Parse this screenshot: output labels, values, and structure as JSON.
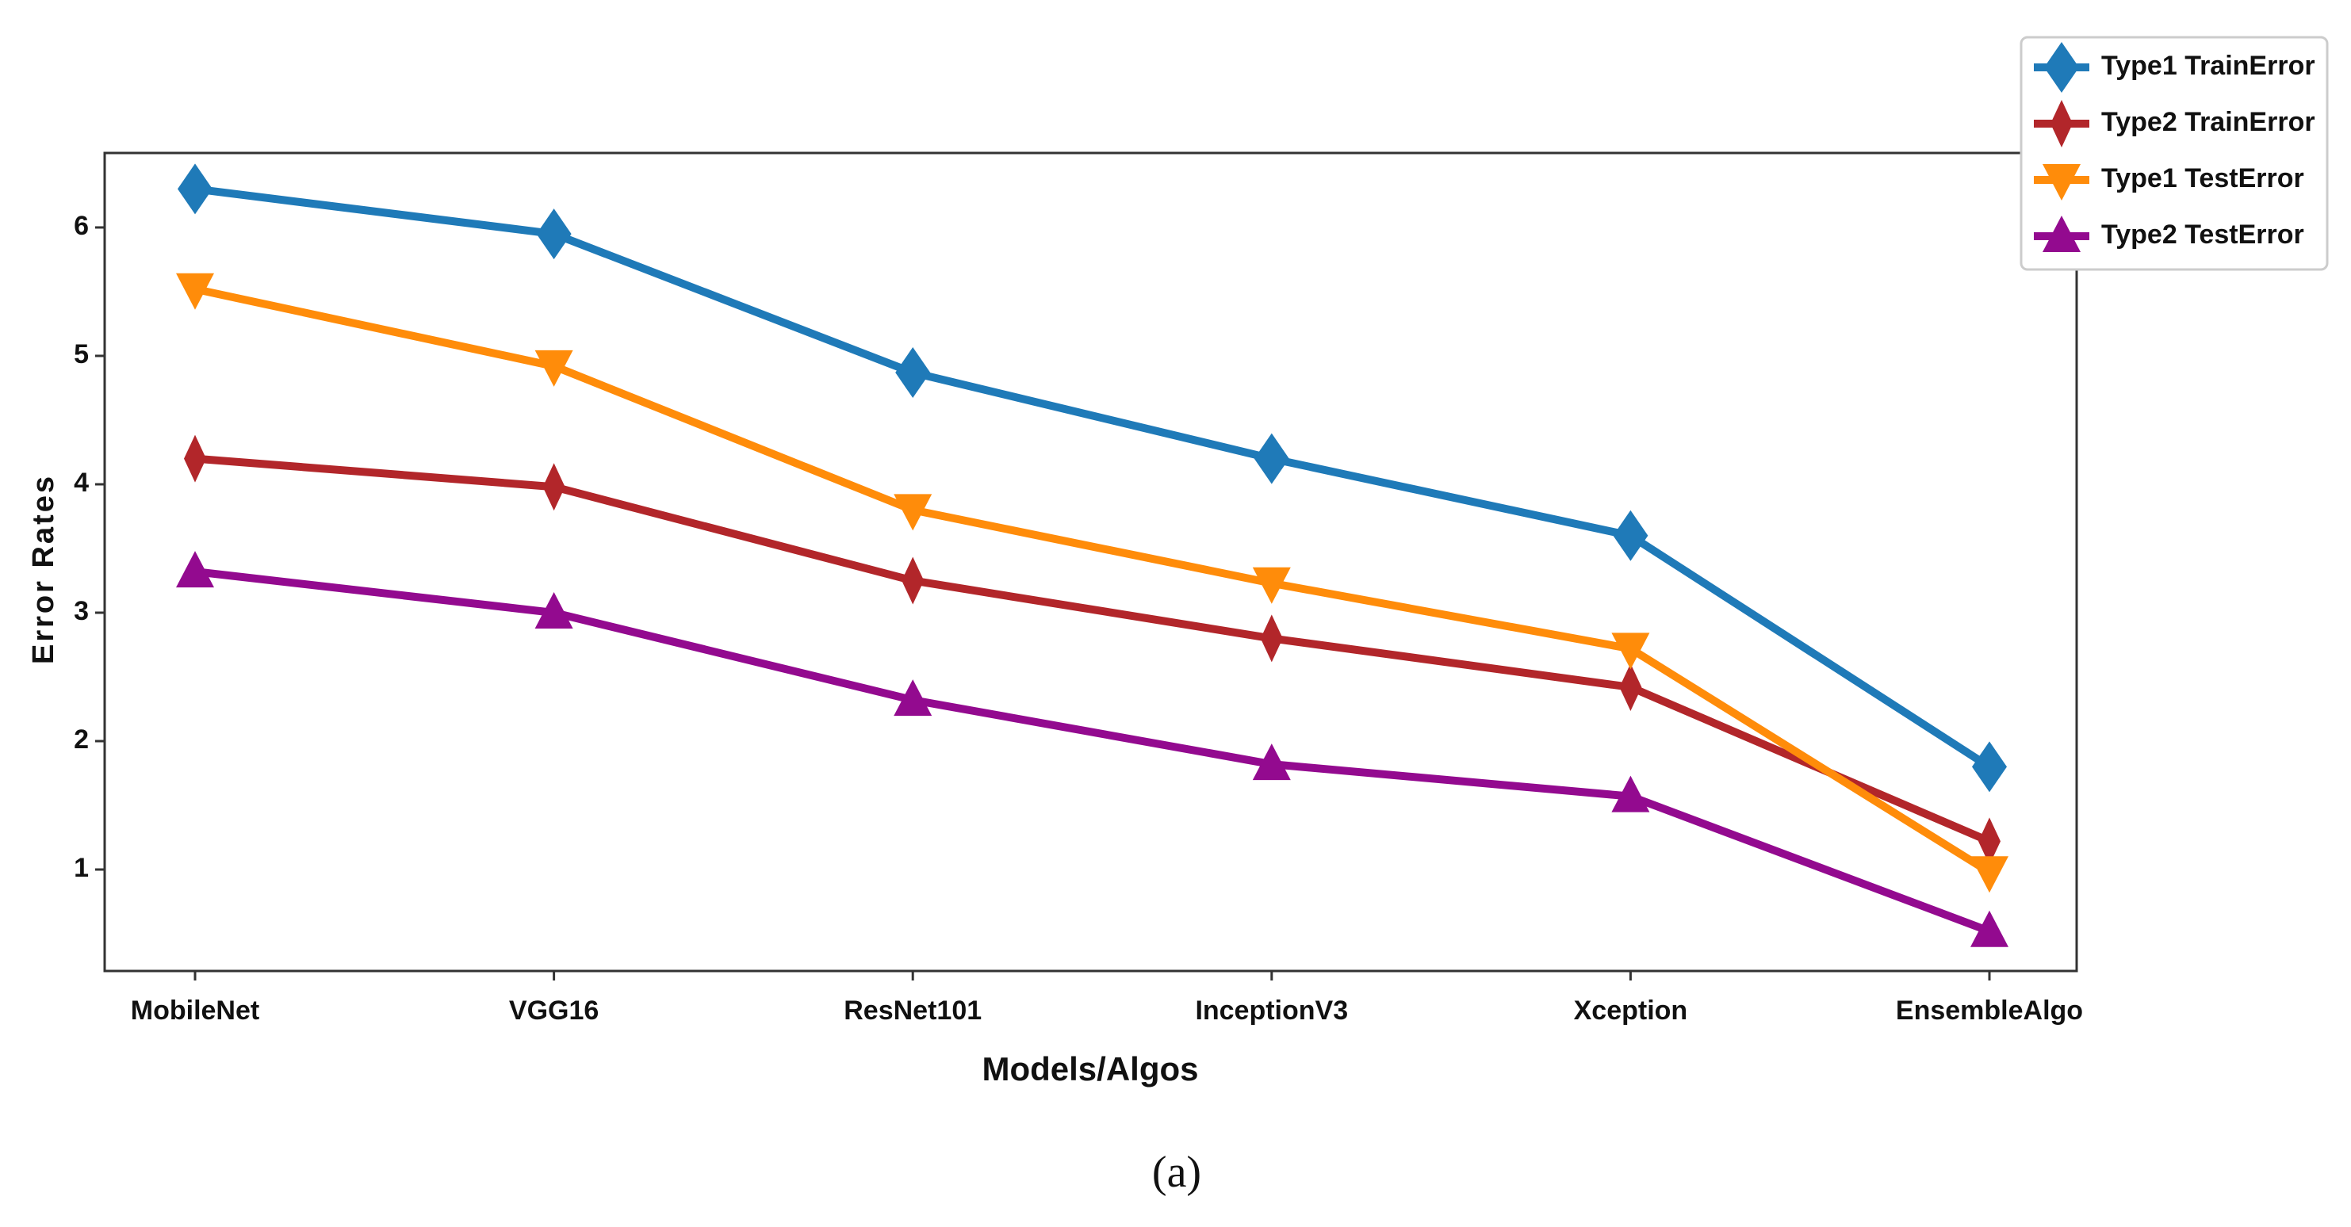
{
  "chart_data": {
    "type": "line",
    "x_label": "Models/Algos",
    "y_label": "Error Rates",
    "caption": "(a)",
    "categories": [
      "MobileNet",
      "VGG16",
      "ResNet101",
      "InceptionV3",
      "Xception",
      "EnsembleAlgo"
    ],
    "series": [
      {
        "name": "Type1 TrainError",
        "color": "#1f7ab8",
        "marker": "diamond",
        "values": [
          6.3,
          5.95,
          4.87,
          4.2,
          3.6,
          1.8
        ]
      },
      {
        "name": "Type2 TrainError",
        "color": "#b2262a",
        "marker": "thin-diamond",
        "values": [
          4.2,
          3.98,
          3.25,
          2.8,
          2.42,
          1.22
        ]
      },
      {
        "name": "Type1 TestError",
        "color": "#ff8c0a",
        "marker": "triangle-down",
        "values": [
          5.52,
          4.92,
          3.8,
          3.23,
          2.72,
          0.98
        ]
      },
      {
        "name": "Type2 TestError",
        "color": "#930a8f",
        "marker": "triangle-up",
        "values": [
          3.32,
          3.0,
          2.32,
          1.82,
          1.57,
          0.52
        ]
      }
    ],
    "ylim": [
      0.21,
      6.58
    ],
    "yticks": [
      1,
      2,
      3,
      4,
      5,
      6
    ],
    "grid": false,
    "legend": "upper right"
  }
}
